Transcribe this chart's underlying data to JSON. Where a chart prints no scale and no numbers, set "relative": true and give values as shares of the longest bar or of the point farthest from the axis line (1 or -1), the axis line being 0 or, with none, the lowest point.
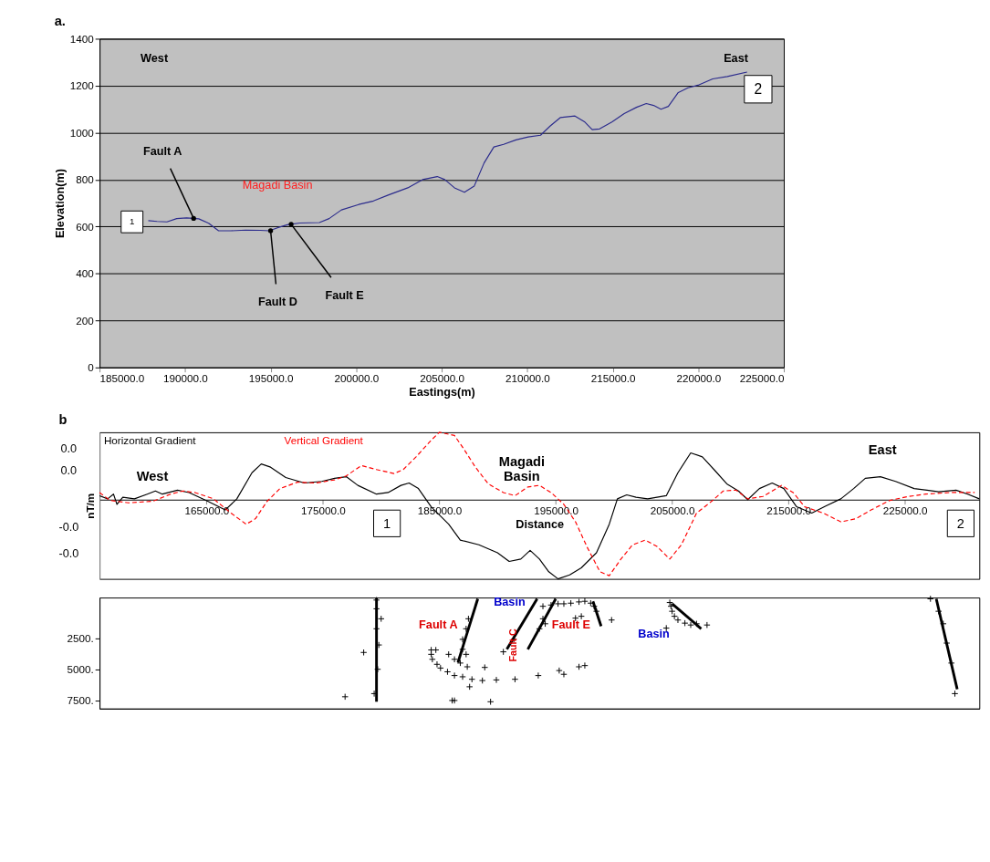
{
  "chart_data": [
    {
      "type": "line",
      "title": "a.",
      "xlabel": "Eastings(m)",
      "ylabel": "Elevation(m)",
      "x": [
        187850,
        188360,
        188940,
        189510,
        190090,
        190800,
        191380,
        191960,
        192670,
        193540,
        194400,
        194920,
        195400,
        195980,
        196700,
        197850,
        198420,
        199140,
        200150,
        201010,
        201870,
        203020,
        203880,
        204740,
        205180,
        205750,
        206330,
        206900,
        207480,
        208050,
        208620,
        209340,
        210060,
        210780,
        211350,
        211930,
        212790,
        213370,
        213800,
        214230,
        214950,
        215670,
        216390,
        216960,
        217390,
        217820,
        218250,
        218830,
        219400,
        219980,
        220840,
        221700,
        222850
      ],
      "series": [
        {
          "color": "#2b2b8c",
          "values": [
            625,
            622,
            620,
            634,
            637,
            633,
            614,
            582,
            582,
            585,
            584,
            582,
            595,
            608,
            615,
            617,
            634,
            671,
            694,
            709,
            734,
            765,
            800,
            813,
            800,
            765,
            746,
            772,
            871,
            939,
            950,
            969,
            982,
            989,
            1029,
            1064,
            1071,
            1045,
            1013,
            1016,
            1045,
            1081,
            1108,
            1124,
            1116,
            1100,
            1112,
            1171,
            1191,
            1202,
            1229,
            1239,
            1258
          ]
        }
      ],
      "xlim": [
        185000,
        225000
      ],
      "xticks": [
        {
          "value": 185000,
          "label": "185000.0"
        },
        {
          "value": 190000,
          "label": "190000.0"
        },
        {
          "value": 195000,
          "label": "195000.0"
        },
        {
          "value": 200000,
          "label": "200000.0"
        },
        {
          "value": 205000,
          "label": "205000.0"
        },
        {
          "value": 210000,
          "label": "210000.0"
        },
        {
          "value": 215000,
          "label": "215000.0"
        },
        {
          "value": 220000,
          "label": "220000.0"
        },
        {
          "value": 225000,
          "label": "225000.0"
        }
      ],
      "ylim": [
        0,
        1400
      ],
      "yticks": [
        0,
        200,
        400,
        600,
        800,
        1000,
        1200,
        1400
      ],
      "grid": "y",
      "annotations": [
        "West",
        "East",
        "Magadi Basin",
        {
          "text": "Fault A",
          "x": 190500,
          "y": 635
        },
        {
          "text": "Fault D",
          "x": 195000,
          "y": 582
        },
        {
          "text": "Fault E",
          "x": 196200,
          "y": 610
        },
        {
          "text": "1",
          "x": 186900,
          "y": 620
        },
        {
          "text": "2",
          "x": 223500,
          "y": 1185
        }
      ]
    },
    {
      "type": "line",
      "title": "b",
      "xlabel": "Distance",
      "ylabel": "nT/m",
      "relative": true,
      "series": [
        {
          "name": "Horizontal Gradient",
          "color": "#000000",
          "x": [
            155800,
            156500,
            157000,
            157300,
            157800,
            158800,
            159900,
            160600,
            161200,
            162500,
            163500,
            165100,
            166600,
            167600,
            168900,
            169700,
            170500,
            171800,
            173400,
            174900,
            176000,
            177000,
            178000,
            179600,
            180600,
            181700,
            182400,
            183200,
            184300,
            185800,
            186800,
            188400,
            190000,
            191000,
            192000,
            192800,
            193600,
            194400,
            195200,
            196200,
            197200,
            198500,
            199600,
            200300,
            201100,
            201900,
            202900,
            204500,
            205500,
            206600,
            207600,
            208600,
            209700,
            210700,
            211500,
            212500,
            213600,
            214600,
            215700,
            217000,
            218200,
            219500,
            220600,
            221600,
            222900,
            224200,
            225800,
            227900,
            229400,
            230400,
            231400
          ],
          "values": [
            0.05,
            0.01,
            0.07,
            -0.06,
            0.03,
            0.01,
            0.07,
            0.11,
            0.07,
            0.12,
            0.09,
            -0.02,
            -0.13,
            0.01,
            0.34,
            0.45,
            0.41,
            0.28,
            0.21,
            0.23,
            0.27,
            0.29,
            0.18,
            0.07,
            0.09,
            0.18,
            0.21,
            0.14,
            -0.09,
            -0.31,
            -0.51,
            -0.57,
            -0.67,
            -0.78,
            -0.75,
            -0.64,
            -0.75,
            -0.91,
            -1,
            -0.95,
            -0.86,
            -0.67,
            -0.31,
            0.01,
            0.06,
            0.03,
            0.01,
            0.05,
            0.34,
            0.59,
            0.54,
            0.38,
            0.2,
            0.11,
            0,
            0.14,
            0.21,
            0.14,
            -0.09,
            -0.17,
            -0.08,
            0.01,
            0.14,
            0.27,
            0.29,
            0.23,
            0.14,
            0.1,
            0.12,
            0.07,
            0.01
          ]
        },
        {
          "name": "Vertical Gradient",
          "color": "#ff0000",
          "line_style": "dashed",
          "x": [
            155800,
            156700,
            158300,
            160400,
            161900,
            163000,
            164000,
            165600,
            167100,
            168400,
            169200,
            170200,
            171300,
            172800,
            174400,
            176000,
            177000,
            178300,
            179600,
            181100,
            181900,
            183000,
            184300,
            185000,
            186300,
            187100,
            188100,
            189200,
            190500,
            191500,
            192600,
            193600,
            194600,
            195700,
            196700,
            197700,
            198800,
            199600,
            200600,
            201600,
            202700,
            203700,
            204800,
            205800,
            207100,
            208400,
            209400,
            210500,
            211500,
            212800,
            214400,
            215400,
            216400,
            218000,
            219500,
            220800,
            222100,
            223700,
            225300,
            226800,
            228900,
            231000
          ],
          "values": [
            0.09,
            -0.01,
            -0.04,
            -0.02,
            0.07,
            0.11,
            0.09,
            0.01,
            -0.17,
            -0.31,
            -0.24,
            -0.02,
            0.14,
            0.22,
            0.21,
            0.25,
            0.3,
            0.43,
            0.38,
            0.33,
            0.38,
            0.54,
            0.75,
            0.85,
            0.81,
            0.64,
            0.41,
            0.2,
            0.09,
            0.05,
            0.16,
            0.18,
            0.09,
            -0.06,
            -0.28,
            -0.6,
            -0.91,
            -0.96,
            -0.75,
            -0.57,
            -0.51,
            -0.59,
            -0.75,
            -0.57,
            -0.17,
            -0.02,
            0.11,
            0.12,
            0.01,
            0.04,
            0.18,
            0.09,
            -0.09,
            -0.17,
            -0.28,
            -0.24,
            -0.13,
            -0.01,
            0.04,
            0.07,
            0.09,
            0.09
          ]
        }
      ],
      "xlim": [
        155800,
        231400
      ],
      "xticks": [
        {
          "value": 165000,
          "label": "165000.0"
        },
        {
          "value": 175000,
          "label": "175000.0"
        },
        {
          "value": 185000,
          "label": "185000.0"
        },
        {
          "value": 195000,
          "label": "195000.0"
        },
        {
          "value": 205000,
          "label": "205000.0"
        },
        {
          "value": 215000,
          "label": "215000.0"
        },
        {
          "value": 225000,
          "label": "225000.0"
        }
      ],
      "annotations": [
        "West",
        "Magadi\nBasin",
        "East",
        {
          "text": "1",
          "x": 180500,
          "y": -0.3
        },
        {
          "text": "2",
          "x": 229800,
          "y": -0.3
        },
        "0.0",
        "0.0",
        "-0.0",
        "-0.0"
      ]
    },
    {
      "type": "scatter",
      "tick_labels": "y",
      "series": [
        {
          "color": "#000000",
          "marker": "cross",
          "x": [
            179600,
            179600,
            180000,
            179600,
            179800,
            178500,
            179700,
            179400,
            176900,
            184300,
            184700,
            184300,
            184400,
            184800,
            185100,
            185800,
            186300,
            186800,
            187400,
            185700,
            186300,
            187000,
            187800,
            188700,
            189900,
            191500,
            187600,
            193500,
            195300,
            195700,
            197000,
            197500,
            186100,
            186300,
            189400,
            188900,
            190500,
            191400,
            187500,
            187300,
            187000,
            187000,
            187300,
            193900,
            194600,
            195200,
            195700,
            196300,
            197000,
            197500,
            198000,
            198300,
            198500,
            197200,
            196700,
            199800,
            193900,
            194100,
            193600,
            204800,
            204900,
            205000,
            205200,
            205500,
            206100,
            206600,
            207100,
            208000,
            204500,
            227200,
            227900,
            228300,
            228600,
            229000,
            229300
          ],
          "values": [
            -550,
            150,
            950,
            1750,
            3050,
            3650,
            5000,
            6950,
            7200,
            3450,
            3450,
            3800,
            4200,
            4600,
            4900,
            3800,
            4200,
            4500,
            4800,
            5200,
            5500,
            5600,
            5800,
            5900,
            5850,
            5800,
            6400,
            5500,
            5100,
            5400,
            4800,
            4700,
            7500,
            7500,
            7600,
            4850,
            3600,
            2600,
            950,
            1750,
            2600,
            3400,
            3800,
            -50,
            -150,
            -250,
            -250,
            -300,
            -400,
            -450,
            -300,
            -50,
            350,
            750,
            900,
            1050,
            950,
            1350,
            1750,
            -350,
            -50,
            350,
            750,
            1050,
            1300,
            1450,
            1350,
            1450,
            1700,
            -650,
            350,
            1350,
            2900,
            4500,
            6950
          ]
        },
        {
          "type": "line",
          "color": "#000000",
          "x": [
            179600,
            179600
          ],
          "values": [
            -700,
            7600
          ]
        },
        {
          "type": "line",
          "color": "#000000",
          "x": [
            188300,
            186600
          ],
          "values": [
            -650,
            4450
          ]
        },
        {
          "type": "line",
          "color": "#000000",
          "x": [
            193400,
            190800
          ],
          "values": [
            -650,
            3400
          ]
        },
        {
          "type": "line",
          "color": "#000000",
          "x": [
            195000,
            192600
          ],
          "values": [
            -650,
            3400
          ]
        },
        {
          "type": "line",
          "color": "#000000",
          "x": [
            198200,
            198900
          ],
          "values": [
            -450,
            1550
          ]
        },
        {
          "type": "line",
          "color": "#000000",
          "x": [
            205000,
            207500
          ],
          "values": [
            -250,
            1750
          ]
        },
        {
          "type": "line",
          "color": "#000000",
          "x": [
            227700,
            229500
          ],
          "values": [
            -650,
            6600
          ]
        }
      ],
      "xlim": [
        155800,
        231400
      ],
      "ylim": [
        8150,
        -750
      ],
      "yticks": [
        {
          "value": 2500,
          "label": "2500."
        },
        {
          "value": 5000,
          "label": "5000."
        },
        {
          "value": 7500,
          "label": "7500."
        }
      ],
      "annotations": [
        "Fault A",
        "Basin",
        "Fault E",
        "Basin",
        "Fault C"
      ]
    }
  ]
}
